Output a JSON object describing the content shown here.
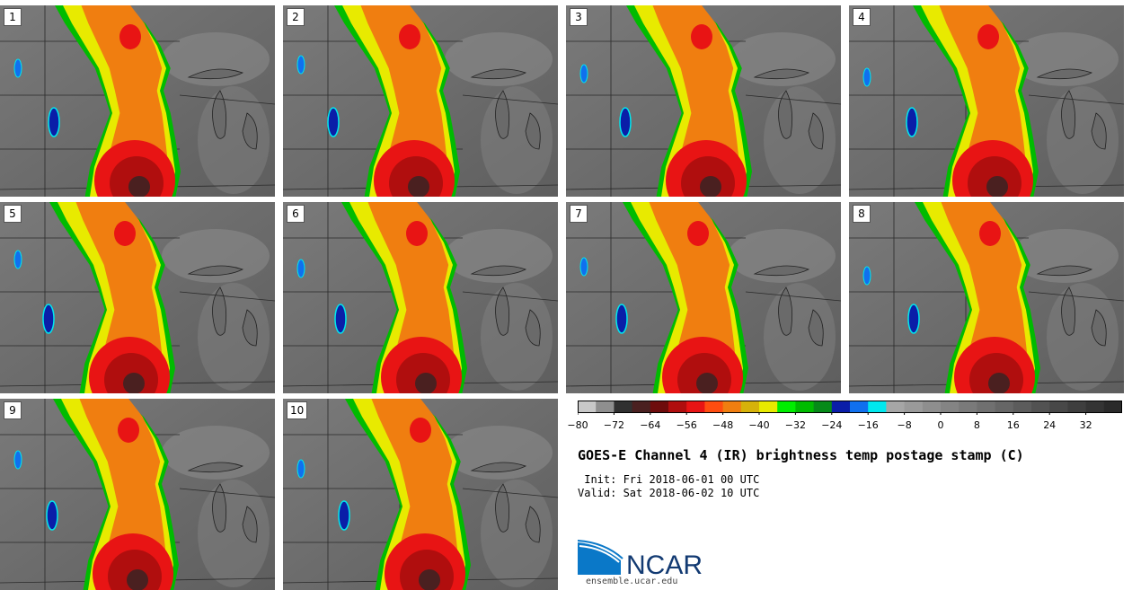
{
  "panels": [
    "1",
    "2",
    "3",
    "4",
    "5",
    "6",
    "7",
    "8",
    "9",
    "10"
  ],
  "colorbar": {
    "colors": [
      "#c8c8c8",
      "#8f8f8f",
      "#303030",
      "#4a2020",
      "#6e0c0c",
      "#b00e0e",
      "#e81414",
      "#ff4d10",
      "#f07e10",
      "#d6b20a",
      "#e8ea00",
      "#00ee00",
      "#00bb00",
      "#068a18",
      "#0a1ea8",
      "#1070ee",
      "#00e8ee",
      "#a6a6a6",
      "#9a9a9a",
      "#8e8e8e",
      "#848484",
      "#7a7a7a",
      "#707070",
      "#666666",
      "#5c5c5c",
      "#525252",
      "#484848",
      "#3e3e3e",
      "#343434",
      "#2a2a2a"
    ],
    "ticks": [
      "−80",
      "−72",
      "−64",
      "−56",
      "−48",
      "−40",
      "−32",
      "−24",
      "−16",
      "−8",
      "0",
      "8",
      "16",
      "24",
      "32"
    ]
  },
  "title": "GOES-E Channel 4 (IR) brightness temp postage stamp (C)",
  "init": " Init: Fri 2018-06-01 00 UTC",
  "valid": "Valid: Sat 2018-06-02 10 UTC",
  "logo": {
    "text": "NCAR",
    "url": "ensemble.ucar.edu"
  }
}
